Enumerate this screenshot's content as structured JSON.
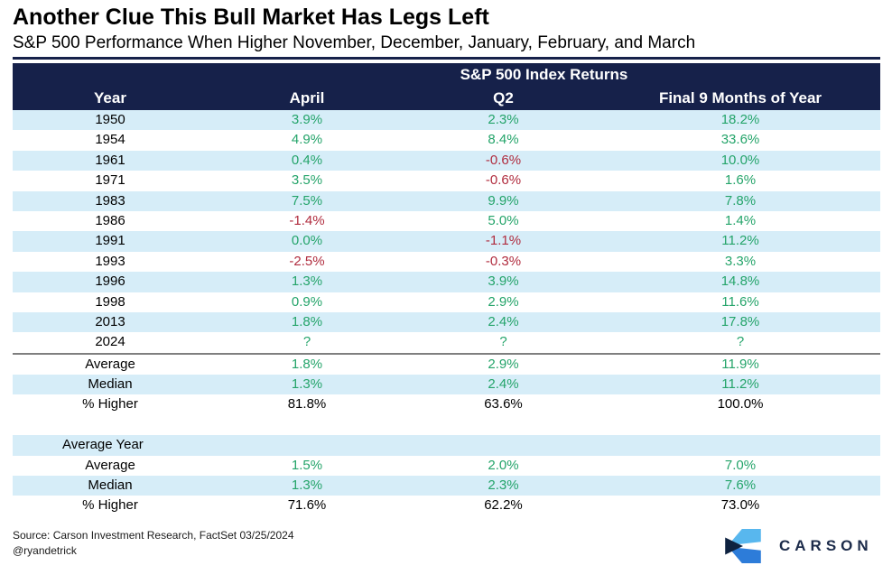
{
  "header": {
    "title": "Another Clue This Bull Market Has Legs Left",
    "subtitle": "S&P 500 Performance When Higher November, December, January, February, and March"
  },
  "chart_data": {
    "type": "table",
    "title": "Another Clue This Bull Market Has Legs Left",
    "subtitle": "S&P 500 Performance When Higher November, December, January, February, and March",
    "group_header": "S&P 500 Index Returns",
    "columns": [
      "Year",
      "April",
      "Q2",
      "Final 9 Months of Year"
    ],
    "rows": [
      {
        "label": "1950",
        "values": [
          "3.9%",
          "2.3%",
          "18.2%"
        ],
        "shade": true
      },
      {
        "label": "1954",
        "values": [
          "4.9%",
          "8.4%",
          "33.6%"
        ],
        "shade": false
      },
      {
        "label": "1961",
        "values": [
          "0.4%",
          "-0.6%",
          "10.0%"
        ],
        "shade": true
      },
      {
        "label": "1971",
        "values": [
          "3.5%",
          "-0.6%",
          "1.6%"
        ],
        "shade": false
      },
      {
        "label": "1983",
        "values": [
          "7.5%",
          "9.9%",
          "7.8%"
        ],
        "shade": true
      },
      {
        "label": "1986",
        "values": [
          "-1.4%",
          "5.0%",
          "1.4%"
        ],
        "shade": false
      },
      {
        "label": "1991",
        "values": [
          "0.0%",
          "-1.1%",
          "11.2%"
        ],
        "shade": true
      },
      {
        "label": "1993",
        "values": [
          "-2.5%",
          "-0.3%",
          "3.3%"
        ],
        "shade": false
      },
      {
        "label": "1996",
        "values": [
          "1.3%",
          "3.9%",
          "14.8%"
        ],
        "shade": true
      },
      {
        "label": "1998",
        "values": [
          "0.9%",
          "2.9%",
          "11.6%"
        ],
        "shade": false
      },
      {
        "label": "2013",
        "values": [
          "1.8%",
          "2.4%",
          "17.8%"
        ],
        "shade": true
      },
      {
        "label": "2024",
        "values": [
          "?",
          "?",
          "?"
        ],
        "shade": false
      },
      {
        "label": "Average",
        "values": [
          "1.8%",
          "2.9%",
          "11.9%"
        ],
        "shade": false,
        "sep_above": true
      },
      {
        "label": "Median",
        "values": [
          "1.3%",
          "2.4%",
          "11.2%"
        ],
        "shade": true
      },
      {
        "label": "% Higher",
        "values": [
          "81.8%",
          "63.6%",
          "100.0%"
        ],
        "shade": false,
        "neutral": true
      },
      {
        "label": "",
        "values": [
          "",
          "",
          ""
        ],
        "shade": false,
        "spacer": true
      },
      {
        "label": "Average Year",
        "values": [
          "",
          "",
          ""
        ],
        "shade": true,
        "label_align": "left"
      },
      {
        "label": "Average",
        "values": [
          "1.5%",
          "2.0%",
          "7.0%"
        ],
        "shade": false
      },
      {
        "label": "Median",
        "values": [
          "1.3%",
          "2.3%",
          "7.6%"
        ],
        "shade": true
      },
      {
        "label": "% Higher",
        "values": [
          "71.6%",
          "62.2%",
          "73.0%"
        ],
        "shade": false,
        "neutral": true
      }
    ]
  },
  "colors": {
    "positive": "#24a46a",
    "negative": "#b02c3e",
    "neutral": "#000000",
    "header_bg": "#16214a",
    "shade": "#d6edf8",
    "logo_light": "#58b7ee",
    "logo_mid": "#2d7cd9",
    "logo_dark": "#0e2240",
    "logo_navy": "#1c2b4a"
  },
  "footer": {
    "source_line1": "Source: Carson Investment Research, FactSet 03/25/2024",
    "source_line2": "@ryandetrick",
    "logo_text": "CARSON"
  }
}
